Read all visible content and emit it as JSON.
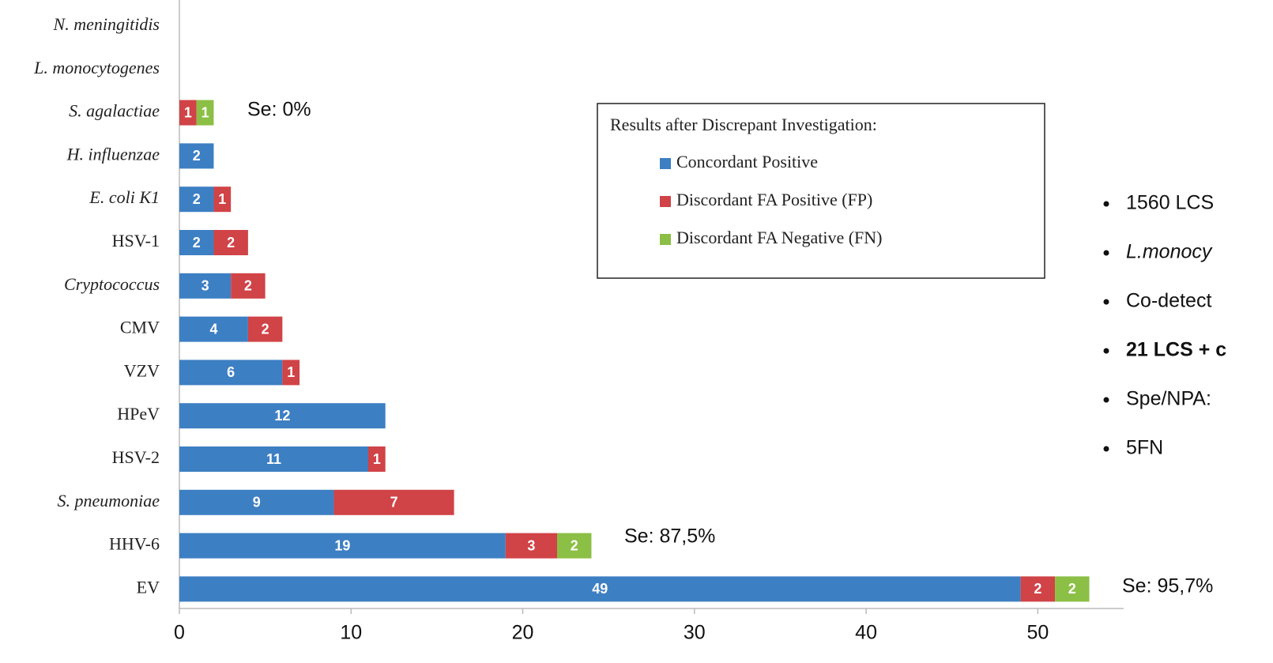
{
  "chart_data": {
    "type": "stacked-barh",
    "categories": [
      "N. meningitidis",
      "L. monocytogenes",
      "S. agalactiae",
      "H. influenzae",
      "E. coli K1",
      "HSV-1",
      "Cryptococcus",
      "CMV",
      "VZV",
      "HPeV",
      "HSV-2",
      "S. pneumoniae",
      "HHV-6",
      "EV"
    ],
    "category_italic": [
      true,
      true,
      true,
      true,
      true,
      false,
      true,
      false,
      false,
      false,
      false,
      true,
      false,
      false
    ],
    "series": [
      {
        "name": "Concordant Positive",
        "color": "#3d7fc3",
        "values": [
          0,
          0,
          0,
          2,
          2,
          2,
          3,
          4,
          6,
          12,
          11,
          9,
          19,
          49
        ]
      },
      {
        "name": "Discordant FA Positive (FP)",
        "color": "#d04347",
        "values": [
          0,
          0,
          1,
          0,
          1,
          2,
          2,
          2,
          1,
          0,
          1,
          7,
          3,
          2
        ]
      },
      {
        "name": "Discordant FA Negative (FN)",
        "color": "#8cbf45",
        "values": [
          0,
          0,
          1,
          0,
          0,
          0,
          0,
          0,
          0,
          0,
          0,
          0,
          2,
          2
        ]
      }
    ],
    "xlim": [
      0,
      55
    ],
    "xticks": [
      0,
      10,
      20,
      30,
      40,
      50
    ],
    "legend_title": "Results after Discrepant Investigation:",
    "annotations": [
      "Se: 0%",
      "Se: 87,5%",
      "Se: 95,7%"
    ],
    "bullets": [
      {
        "text": "1560 LCS",
        "bold": false,
        "italic": false
      },
      {
        "text": "L.monocy",
        "bold": false,
        "italic": true
      },
      {
        "text": "Co-detect",
        "bold": false,
        "italic": false
      },
      {
        "text": "21 LCS + c",
        "bold": true,
        "italic": false
      },
      {
        "text": "Spe/NPA:",
        "bold": false,
        "italic": false
      },
      {
        "text": "5FN",
        "bold": false,
        "italic": false
      }
    ]
  }
}
